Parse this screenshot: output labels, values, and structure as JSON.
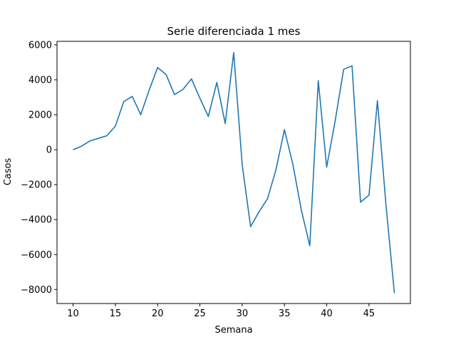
{
  "chart_data": {
    "type": "line",
    "title": "Serie diferenciada 1 mes",
    "xlabel": "Semana",
    "ylabel": "Casos",
    "xlim": [
      8.1,
      49.9
    ],
    "ylim": [
      -8800,
      6200
    ],
    "xticks": [
      10,
      15,
      20,
      25,
      30,
      35,
      40,
      45
    ],
    "yticks": [
      -8000,
      -6000,
      -4000,
      -2000,
      0,
      2000,
      4000,
      6000
    ],
    "xtick_labels": [
      "10",
      "15",
      "20",
      "25",
      "30",
      "35",
      "40",
      "45"
    ],
    "ytick_labels": [
      "−8000",
      "−6000",
      "−4000",
      "−2000",
      "0",
      "2000",
      "4000",
      "6000"
    ],
    "grid": false,
    "line_color": "#1f77b4",
    "series": [
      {
        "x": [
          10,
          11,
          12,
          13,
          14,
          15,
          16,
          17,
          18,
          19,
          20,
          21,
          22,
          23,
          24,
          25,
          26,
          27,
          28,
          29,
          30,
          31,
          32,
          33,
          34,
          35,
          36,
          37,
          38,
          39,
          40,
          41,
          42,
          43,
          44,
          45,
          46,
          47,
          48
        ],
        "y": [
          0,
          200,
          500,
          650,
          800,
          1350,
          2750,
          3050,
          2000,
          3400,
          4700,
          4300,
          3150,
          3450,
          4050,
          2950,
          1900,
          3850,
          1500,
          5550,
          -850,
          -4400,
          -3550,
          -2800,
          -1150,
          1150,
          -850,
          -3450,
          -5500,
          3950,
          -1000,
          1650,
          4600,
          4800,
          -3000,
          -2600,
          2800,
          -3100,
          -8200
        ]
      }
    ]
  }
}
